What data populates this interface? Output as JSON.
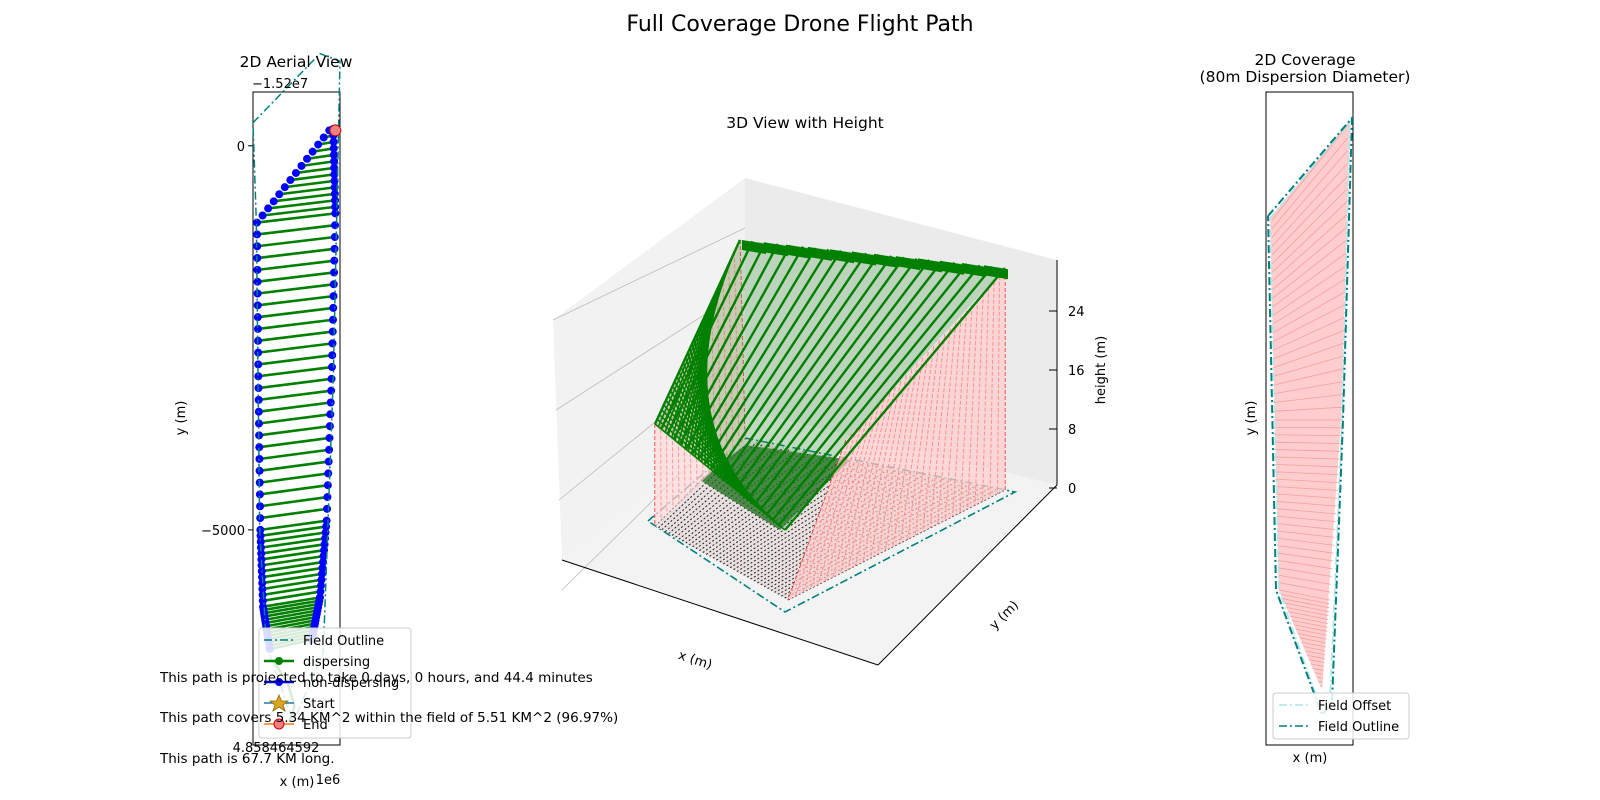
{
  "figure": {
    "suptitle": "Full Coverage Drone Flight Path",
    "info_lines": [
      "This path is projected to take 0 days, 0 hours, and 44.4 minutes",
      "This path covers 5.34 KM^2 within the field of 5.51 KM^2 (96.97%)",
      "This path is 67.7 KM long."
    ]
  },
  "colors": {
    "outline": "#008080",
    "offset": "#aee6ea",
    "dispersing": "#008000",
    "non_dispersing": "#0000ff",
    "start": "#daa520",
    "end": "#f08080",
    "coverage": "#ffc8c8",
    "height_lines": "#ff0000"
  },
  "chart_data": [
    {
      "panel": "aerial",
      "type": "line",
      "title": "2D Aerial View",
      "xlabel": "x (m)",
      "ylabel": "y (m)",
      "x_offset_text": "1e6",
      "x_tick_labels": [
        "4.858464592"
      ],
      "y_offset_text": "−1.52e7",
      "y_tick_labels": [
        "0",
        "−5000"
      ],
      "ylim": [
        -7800,
        700
      ],
      "field_outline": [
        [
          0,
          300
        ],
        [
          1000,
          1200
        ],
        [
          1300,
          1100
        ],
        [
          1200,
          -3000
        ],
        [
          1050,
          -6600
        ],
        [
          600,
          -7500
        ],
        [
          200,
          -6500
        ],
        [
          100,
          -5000
        ],
        [
          50,
          -1000
        ],
        [
          0,
          300
        ]
      ],
      "series": [
        {
          "name": "Field Outline"
        },
        {
          "name": "dispersing"
        },
        {
          "name": "non-dispersing"
        },
        {
          "name": "Start"
        },
        {
          "name": "End"
        }
      ],
      "legend_loc": "lower right"
    },
    {
      "panel": "3d",
      "type": "line",
      "title": "3D View with Height",
      "xlabel": "x (m)",
      "ylabel": "y (m)",
      "zlabel": "height (m)",
      "z_ticks": [
        0,
        8,
        16,
        24
      ],
      "zlim": [
        0,
        30
      ]
    },
    {
      "panel": "coverage",
      "type": "area",
      "title": "2D Coverage",
      "subtitle": "(80m Dispersion Diameter)",
      "xlabel": "x (m)",
      "ylabel": "y (m)",
      "series": [
        {
          "name": "Field Offset"
        },
        {
          "name": "Field Outline"
        }
      ],
      "legend_loc": "lower right"
    }
  ]
}
